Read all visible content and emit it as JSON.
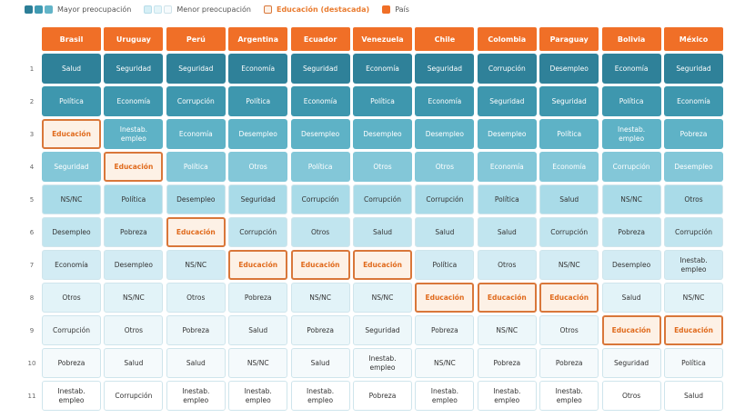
{
  "chart_data": {
    "type": "table",
    "legend": {
      "high": "Mayor preocupación",
      "low": "Menor preocupación",
      "highlight": "Educación (destacada)",
      "country": "País"
    },
    "highlight_item": "Educación",
    "colors": {
      "country_header": "#f06f27",
      "highlight_border": "#d9773a",
      "rank_backgrounds": [
        "#2f8199",
        "#3e97ae",
        "#5eb2c6",
        "#83c7d8",
        "#a9dbe8",
        "#c1e5ef",
        "#d3ecf4",
        "#e2f3f8",
        "#edf7fa",
        "#f5fafc",
        "#ffffff"
      ]
    },
    "ranks": [
      "1",
      "2",
      "3",
      "4",
      "5",
      "6",
      "7",
      "8",
      "9",
      "10",
      "11"
    ],
    "countries": [
      "Brasil",
      "Uruguay",
      "Perú",
      "Argentina",
      "Ecuador",
      "Venezuela",
      "Chile",
      "Colombia",
      "Paraguay",
      "Bolivia",
      "México"
    ],
    "rankings": [
      [
        "Salud",
        "Política",
        "Educación",
        "Seguridad",
        "NS/NC",
        "Desempleo",
        "Economía",
        "Otros",
        "Corrupción",
        "Pobreza",
        "Inestab.\nempleo"
      ],
      [
        "Seguridad",
        "Economía",
        "Inestab.\nempleo",
        "Educación",
        "Política",
        "Pobreza",
        "Desempleo",
        "NS/NC",
        "Otros",
        "Salud",
        "Corrupción"
      ],
      [
        "Seguridad",
        "Corrupción",
        "Economía",
        "Política",
        "Desempleo",
        "Educación",
        "NS/NC",
        "Otros",
        "Pobreza",
        "Salud",
        "Inestab.\nempleo"
      ],
      [
        "Economía",
        "Política",
        "Desempleo",
        "Otros",
        "Seguridad",
        "Corrupción",
        "Educación",
        "Pobreza",
        "Salud",
        "NS/NC",
        "Inestab.\nempleo"
      ],
      [
        "Seguridad",
        "Economía",
        "Desempleo",
        "Política",
        "Corrupción",
        "Otros",
        "Educación",
        "NS/NC",
        "Pobreza",
        "Salud",
        "Inestab.\nempleo"
      ],
      [
        "Economía",
        "Política",
        "Desempleo",
        "Otros",
        "Corrupción",
        "Salud",
        "Educación",
        "NS/NC",
        "Seguridad",
        "Inestab.\nempleo",
        "Pobreza"
      ],
      [
        "Seguridad",
        "Economía",
        "Desempleo",
        "Otros",
        "Corrupción",
        "Salud",
        "Política",
        "Educación",
        "Pobreza",
        "NS/NC",
        "Inestab.\nempleo"
      ],
      [
        "Corrupción",
        "Seguridad",
        "Desempleo",
        "Economía",
        "Política",
        "Salud",
        "Otros",
        "Educación",
        "NS/NC",
        "Pobreza",
        "Inestab.\nempleo"
      ],
      [
        "Desempleo",
        "Seguridad",
        "Política",
        "Economía",
        "Salud",
        "Corrupción",
        "NS/NC",
        "Educación",
        "Otros",
        "Pobreza",
        "Inestab.\nempleo"
      ],
      [
        "Economía",
        "Política",
        "Inestab.\nempleo",
        "Corrupción",
        "NS/NC",
        "Pobreza",
        "Desempleo",
        "Salud",
        "Educación",
        "Seguridad",
        "Otros"
      ],
      [
        "Seguridad",
        "Economía",
        "Pobreza",
        "Desempleo",
        "Otros",
        "Corrupción",
        "Inestab.\nempleo",
        "NS/NC",
        "Educación",
        "Política",
        "Salud"
      ]
    ]
  }
}
